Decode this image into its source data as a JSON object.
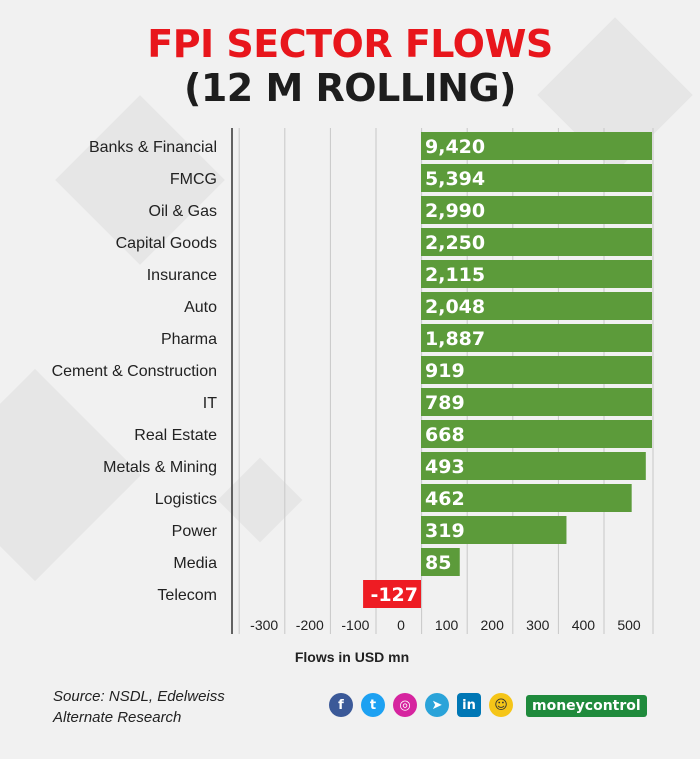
{
  "chart_data": {
    "type": "bar",
    "orientation": "horizontal",
    "title": "FPI SECTOR FLOWS",
    "subtitle": "(12 M ROLLING)",
    "xlabel": "Flows in USD mn",
    "ylabel": "",
    "categories": [
      "Banks & Financial",
      "FMCG",
      "Oil & Gas",
      "Capital Goods",
      "Insurance",
      "Auto",
      "Pharma",
      "Cement & Construction",
      "IT",
      "Real Estate",
      "Metals & Mining",
      "Logistics",
      "Power",
      "Media",
      "Telecom"
    ],
    "values": [
      9420,
      5394,
      2990,
      2250,
      2115,
      2048,
      1887,
      919,
      789,
      668,
      493,
      462,
      319,
      85,
      -127
    ],
    "value_labels": [
      "9,420",
      "5,394",
      "2,990",
      "2,250",
      "2,115",
      "2,048",
      "1,887",
      "919",
      "789",
      "668",
      "493",
      "462",
      "319",
      "85",
      "-127"
    ],
    "xticks": [
      -300,
      -200,
      -100,
      0,
      100,
      200,
      300,
      400,
      500
    ],
    "xlim": [
      -400,
      500
    ],
    "grid": true,
    "legend": "none",
    "colors": {
      "positive": "#5c9b3a",
      "negative": "#ee1c23"
    }
  },
  "footer": {
    "source": "Source: NSDL, Edelweiss Alternate Research",
    "social_icons": [
      "facebook-icon",
      "twitter-icon",
      "instagram-icon",
      "telegram-icon",
      "linkedin-icon",
      "snapchat-icon"
    ],
    "brand": "moneycontrol"
  }
}
